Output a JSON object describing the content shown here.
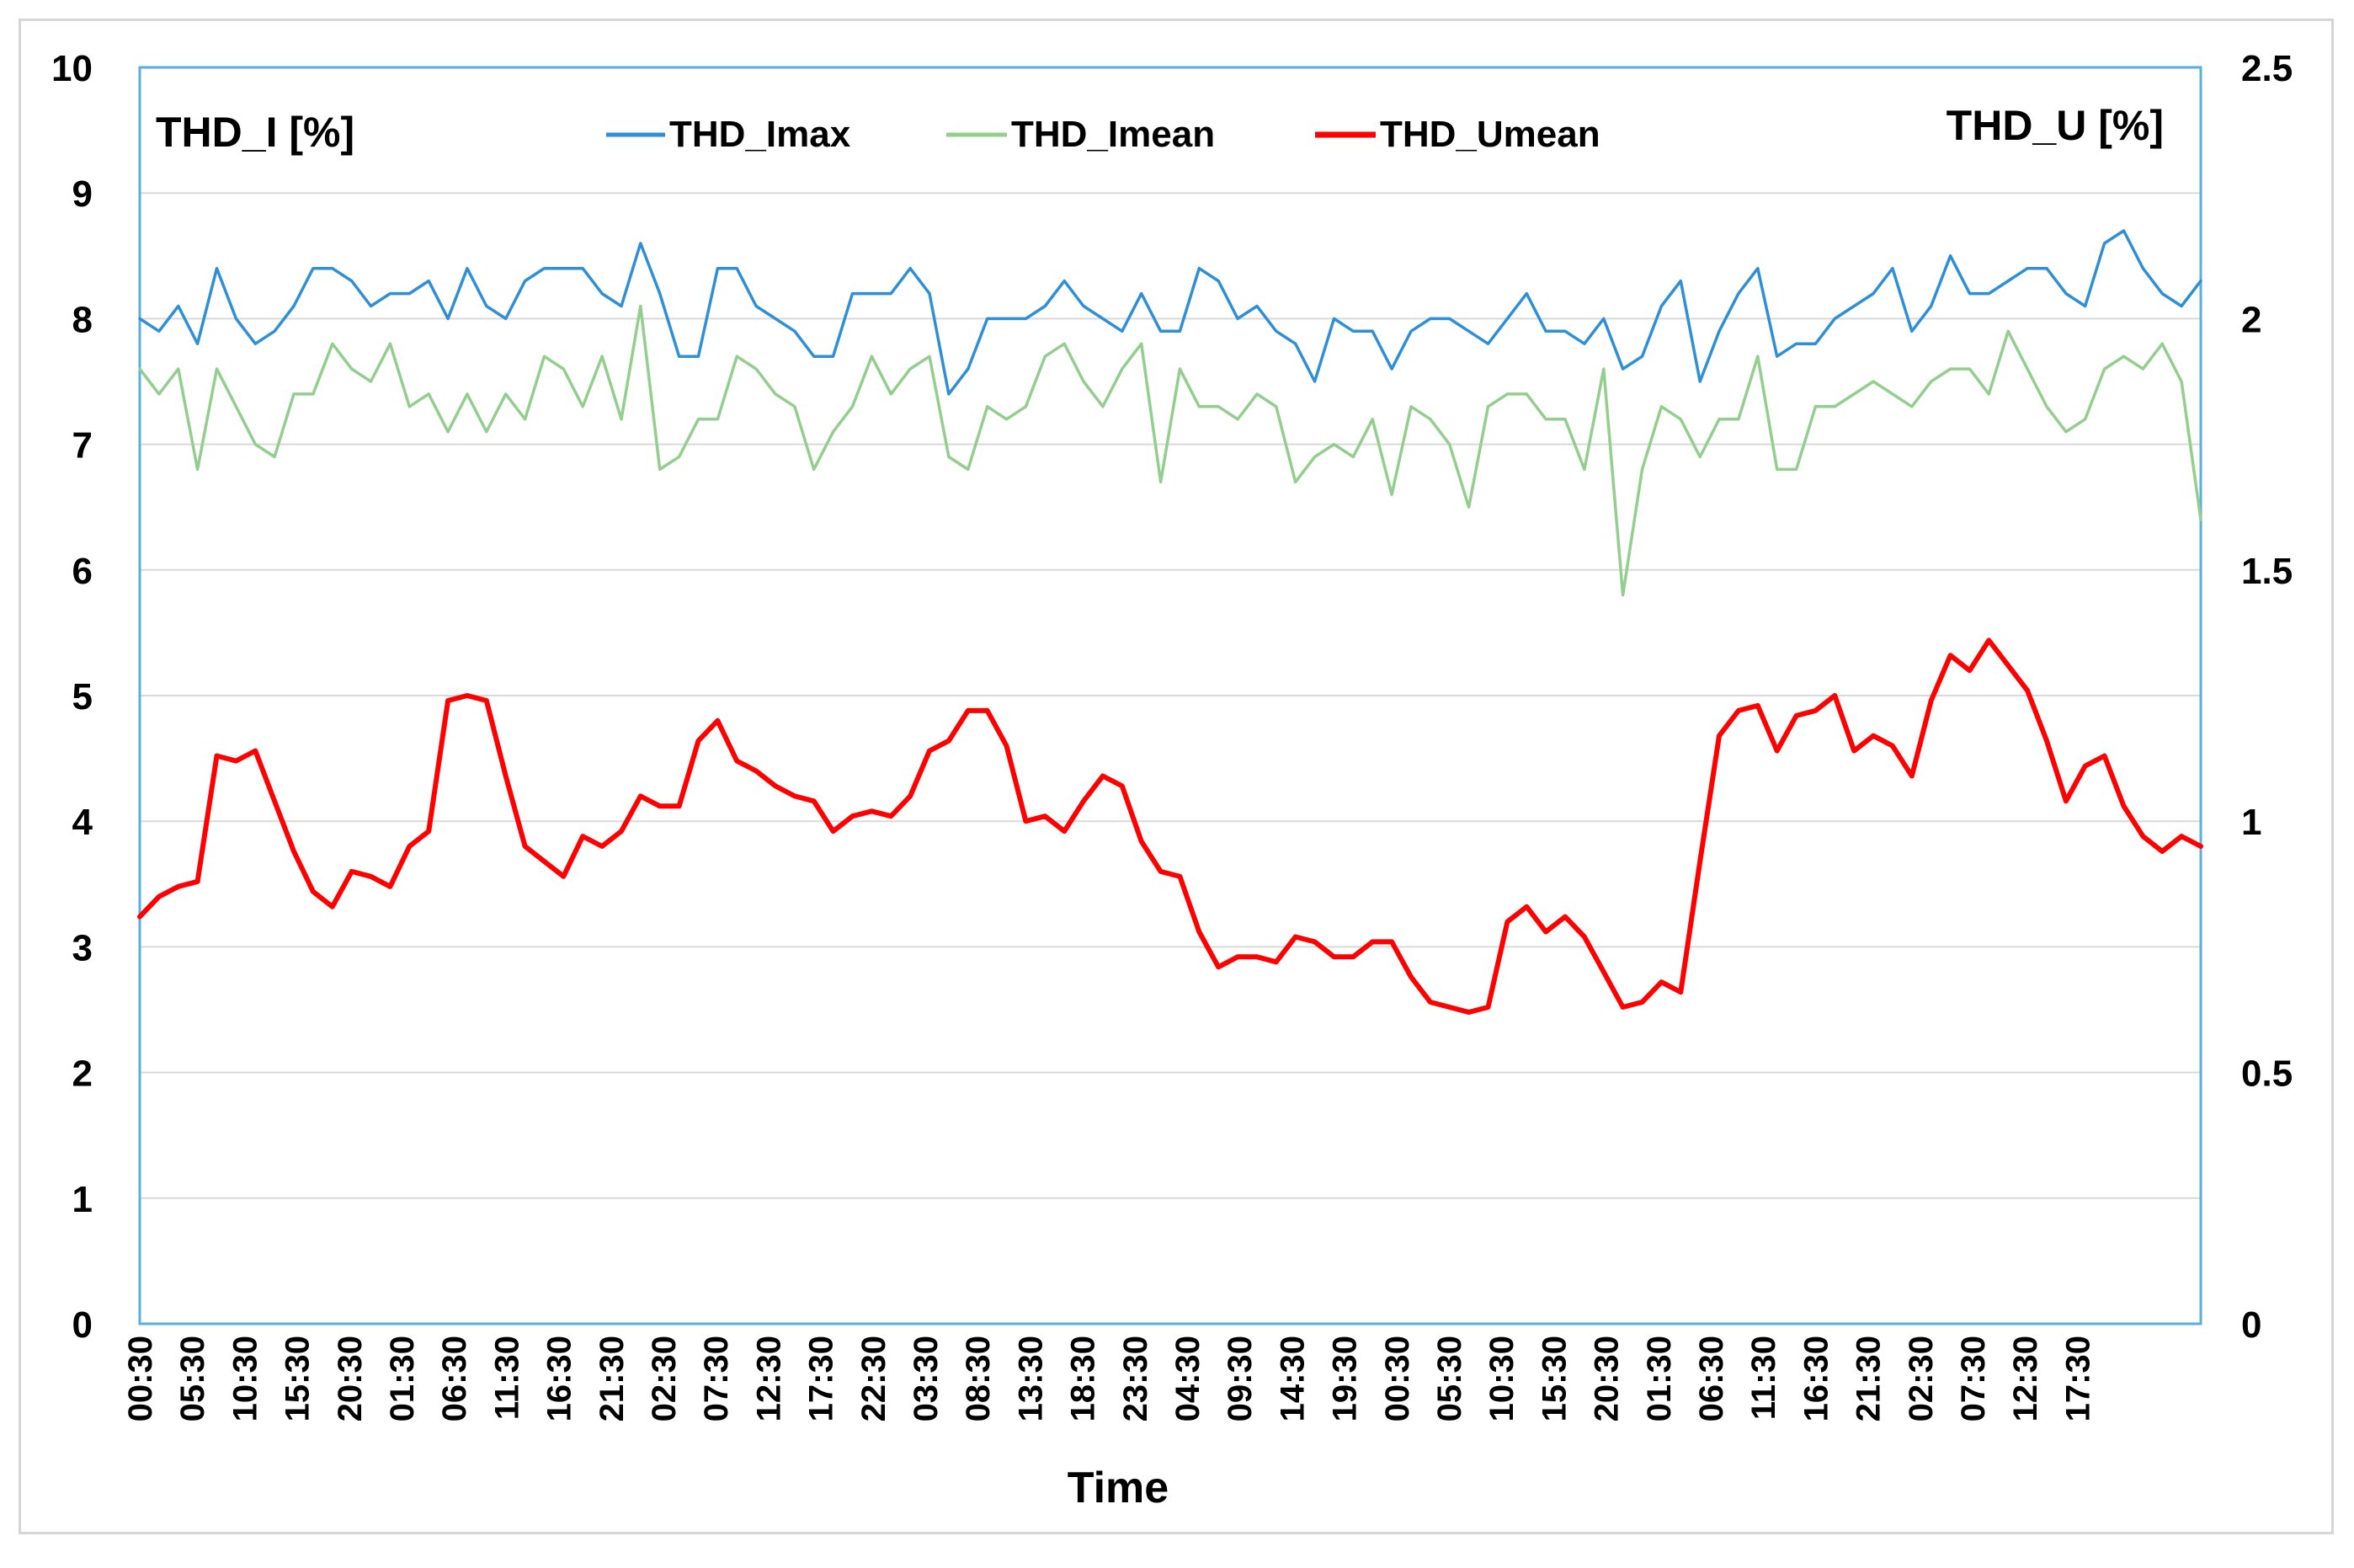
{
  "chart_data": {
    "type": "line",
    "title": "",
    "xlabel": "Time",
    "ylabel_left": "THD_I [%]",
    "ylabel_right": "THD_U [%]",
    "ylim_left": [
      0,
      10
    ],
    "ylim_right": [
      0,
      2.5
    ],
    "yticks_left": [
      "0",
      "1",
      "2",
      "3",
      "4",
      "5",
      "6",
      "7",
      "8",
      "9",
      "10"
    ],
    "yticks_right": [
      "0",
      "0.5",
      "1",
      "1.5",
      "2",
      "2.5"
    ],
    "grid": true,
    "legend_position": "top-center",
    "x_tick_labels": [
      "00:30",
      "05:30",
      "10:30",
      "15:30",
      "20:30",
      "01:30",
      "06:30",
      "11:30",
      "16:30",
      "21:30",
      "02:30",
      "07:30",
      "12:30",
      "17:30",
      "22:30",
      "03:30",
      "08:30",
      "13:30",
      "18:30",
      "23:30",
      "04:30",
      "09:30",
      "14:30",
      "19:30",
      "00:30",
      "05:30",
      "10:30",
      "15:30",
      "20:30",
      "01:30",
      "06:30",
      "11:30",
      "16:30",
      "21:30",
      "02:30",
      "07:30",
      "12:30",
      "17:30"
    ],
    "series": [
      {
        "name": "THD_Imax",
        "axis": "left",
        "color": "#2E8FD6",
        "values": [
          8.0,
          7.9,
          8.1,
          7.8,
          8.4,
          8.0,
          7.8,
          7.9,
          8.1,
          8.4,
          8.4,
          8.3,
          8.1,
          8.2,
          8.2,
          8.3,
          8.0,
          8.4,
          8.1,
          8.0,
          8.3,
          8.4,
          8.4,
          8.4,
          8.2,
          8.1,
          8.6,
          8.2,
          7.7,
          7.7,
          8.4,
          8.4,
          8.1,
          8.0,
          7.9,
          7.7,
          7.7,
          8.2,
          8.2,
          8.2,
          8.4,
          8.2,
          7.4,
          7.6,
          8.0,
          8.0,
          8.0,
          8.1,
          8.3,
          8.1,
          8.0,
          7.9,
          8.2,
          7.9,
          7.9,
          8.4,
          8.3,
          8.0,
          8.1,
          7.9,
          7.8,
          7.5,
          8.0,
          7.9,
          7.9,
          7.6,
          7.9,
          8.0,
          8.0,
          7.9,
          7.8,
          8.0,
          8.2,
          7.9,
          7.9,
          7.8,
          8.0,
          7.6,
          7.7,
          8.1,
          8.3,
          7.5,
          7.9,
          8.2,
          8.4,
          7.7,
          7.8,
          7.8,
          8.0,
          8.1,
          8.2,
          8.4,
          7.9,
          8.1,
          8.5,
          8.2,
          8.2,
          8.3,
          8.4,
          8.4,
          8.2,
          8.1,
          8.6,
          8.7,
          8.4,
          8.2,
          8.1,
          8.3
        ]
      },
      {
        "name": "THD_Imean",
        "axis": "left",
        "color": "#93CE8E",
        "values": [
          7.6,
          7.4,
          7.6,
          6.8,
          7.6,
          7.3,
          7.0,
          6.9,
          7.4,
          7.4,
          7.8,
          7.6,
          7.5,
          7.8,
          7.3,
          7.4,
          7.1,
          7.4,
          7.1,
          7.4,
          7.2,
          7.7,
          7.6,
          7.3,
          7.7,
          7.2,
          8.1,
          6.8,
          6.9,
          7.2,
          7.2,
          7.7,
          7.6,
          7.4,
          7.3,
          6.8,
          7.1,
          7.3,
          7.7,
          7.4,
          7.6,
          7.7,
          6.9,
          6.8,
          7.3,
          7.2,
          7.3,
          7.7,
          7.8,
          7.5,
          7.3,
          7.6,
          7.8,
          6.7,
          7.6,
          7.3,
          7.3,
          7.2,
          7.4,
          7.3,
          6.7,
          6.9,
          7.0,
          6.9,
          7.2,
          6.6,
          7.3,
          7.2,
          7.0,
          6.5,
          7.3,
          7.4,
          7.4,
          7.2,
          7.2,
          6.8,
          7.6,
          5.8,
          6.8,
          7.3,
          7.2,
          6.9,
          7.2,
          7.2,
          7.7,
          6.8,
          6.8,
          7.3,
          7.3,
          7.4,
          7.5,
          7.4,
          7.3,
          7.5,
          7.6,
          7.6,
          7.4,
          7.9,
          7.6,
          7.3,
          7.1,
          7.2,
          7.6,
          7.7,
          7.6,
          7.8,
          7.5,
          6.4
        ]
      },
      {
        "name": "THD_Umean",
        "axis": "right",
        "color": "#FF0000",
        "values": [
          0.81,
          0.85,
          0.87,
          0.88,
          1.13,
          1.12,
          1.14,
          1.04,
          0.94,
          0.86,
          0.83,
          0.9,
          0.89,
          0.87,
          0.95,
          0.98,
          1.24,
          1.25,
          1.24,
          1.09,
          0.95,
          0.92,
          0.89,
          0.97,
          0.95,
          0.98,
          1.05,
          1.03,
          1.03,
          1.16,
          1.2,
          1.12,
          1.1,
          1.07,
          1.05,
          1.04,
          0.98,
          1.01,
          1.02,
          1.01,
          1.05,
          1.14,
          1.16,
          1.22,
          1.22,
          1.15,
          1.0,
          1.01,
          0.98,
          1.04,
          1.09,
          1.07,
          0.96,
          0.9,
          0.89,
          0.78,
          0.71,
          0.73,
          0.73,
          0.72,
          0.77,
          0.76,
          0.73,
          0.73,
          0.76,
          0.76,
          0.69,
          0.64,
          0.63,
          0.62,
          0.63,
          0.8,
          0.83,
          0.78,
          0.81,
          0.77,
          0.7,
          0.63,
          0.64,
          0.68,
          0.66,
          0.92,
          1.17,
          1.22,
          1.23,
          1.14,
          1.21,
          1.22,
          1.25,
          1.14,
          1.17,
          1.15,
          1.09,
          1.24,
          1.33,
          1.3,
          1.36,
          1.31,
          1.26,
          1.16,
          1.04,
          1.11,
          1.13,
          1.03,
          0.97,
          0.94,
          0.97,
          0.95
        ]
      }
    ]
  }
}
